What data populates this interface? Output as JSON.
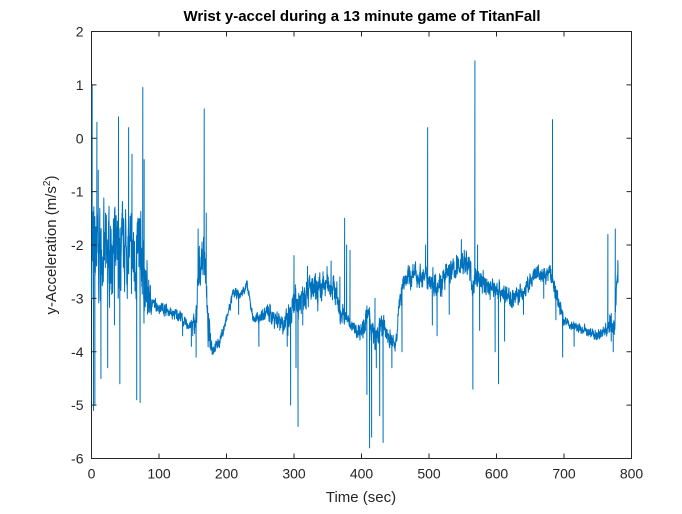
{
  "chart_data": {
    "type": "line",
    "title": "Wrist y-accel during a 13 minute game of TitanFall",
    "xlabel": "Time (sec)",
    "ylabel_main": "y-Acceleration (m/s",
    "ylabel_sup": "2",
    "ylabel_close": ")",
    "xlim": [
      0,
      800
    ],
    "ylim": [
      -6,
      2
    ],
    "xticks": [
      0,
      100,
      200,
      300,
      400,
      500,
      600,
      700,
      800
    ],
    "xtick_labels": [
      "0",
      "100",
      "200",
      "300",
      "400",
      "500",
      "600",
      "700",
      "800"
    ],
    "yticks": [
      -6,
      -5,
      -4,
      -3,
      -2,
      -1,
      0,
      1,
      2
    ],
    "ytick_labels": [
      "-6",
      "-5",
      "-4",
      "-3",
      "-2",
      "-1",
      "0",
      "1",
      "2"
    ],
    "grid": false,
    "series_color": "#0072bd",
    "baseline": [
      [
        0,
        -2.3
      ],
      [
        10,
        -2.1
      ],
      [
        20,
        -2.2
      ],
      [
        30,
        -2.1
      ],
      [
        40,
        -2.3
      ],
      [
        50,
        -2.0
      ],
      [
        60,
        -2.3
      ],
      [
        70,
        -2.1
      ],
      [
        75,
        -2.3
      ],
      [
        80,
        -2.9
      ],
      [
        85,
        -3.0
      ],
      [
        90,
        -3.1
      ],
      [
        100,
        -3.15
      ],
      [
        110,
        -3.2
      ],
      [
        120,
        -3.3
      ],
      [
        130,
        -3.3
      ],
      [
        140,
        -3.5
      ],
      [
        150,
        -3.5
      ],
      [
        155,
        -3.4
      ],
      [
        160,
        -2.4
      ],
      [
        168,
        -2.1
      ],
      [
        172,
        -3.5
      ],
      [
        180,
        -3.95
      ],
      [
        190,
        -3.8
      ],
      [
        200,
        -3.4
      ],
      [
        210,
        -2.9
      ],
      [
        220,
        -2.95
      ],
      [
        230,
        -2.75
      ],
      [
        240,
        -3.4
      ],
      [
        250,
        -3.35
      ],
      [
        260,
        -3.25
      ],
      [
        270,
        -3.35
      ],
      [
        280,
        -3.4
      ],
      [
        290,
        -3.5
      ],
      [
        300,
        -3.2
      ],
      [
        310,
        -3.0
      ],
      [
        320,
        -2.8
      ],
      [
        330,
        -2.9
      ],
      [
        340,
        -2.85
      ],
      [
        350,
        -2.7
      ],
      [
        360,
        -2.8
      ],
      [
        370,
        -3.3
      ],
      [
        380,
        -3.4
      ],
      [
        390,
        -3.6
      ],
      [
        400,
        -3.6
      ],
      [
        410,
        -3.3
      ],
      [
        420,
        -3.8
      ],
      [
        430,
        -3.5
      ],
      [
        440,
        -3.7
      ],
      [
        450,
        -3.9
      ],
      [
        460,
        -2.7
      ],
      [
        470,
        -2.6
      ],
      [
        480,
        -2.55
      ],
      [
        490,
        -2.6
      ],
      [
        500,
        -2.65
      ],
      [
        510,
        -2.7
      ],
      [
        520,
        -2.7
      ],
      [
        530,
        -2.5
      ],
      [
        540,
        -2.45
      ],
      [
        550,
        -2.3
      ],
      [
        560,
        -2.4
      ],
      [
        565,
        -2.8
      ],
      [
        570,
        -2.6
      ],
      [
        580,
        -2.7
      ],
      [
        590,
        -2.8
      ],
      [
        600,
        -2.8
      ],
      [
        610,
        -2.9
      ],
      [
        620,
        -3.0
      ],
      [
        630,
        -2.95
      ],
      [
        640,
        -2.9
      ],
      [
        650,
        -2.7
      ],
      [
        660,
        -2.55
      ],
      [
        670,
        -2.6
      ],
      [
        680,
        -2.5
      ],
      [
        690,
        -3.0
      ],
      [
        700,
        -3.4
      ],
      [
        710,
        -3.5
      ],
      [
        720,
        -3.55
      ],
      [
        730,
        -3.6
      ],
      [
        740,
        -3.65
      ],
      [
        750,
        -3.7
      ],
      [
        760,
        -3.6
      ],
      [
        770,
        -3.5
      ],
      [
        775,
        -3.5
      ],
      [
        780,
        -2.3
      ]
    ],
    "noise": [
      [
        0,
        1.2
      ],
      [
        80,
        1.0
      ],
      [
        90,
        0.15
      ],
      [
        150,
        0.15
      ],
      [
        160,
        0.7
      ],
      [
        175,
        0.4
      ],
      [
        180,
        0.15
      ],
      [
        240,
        0.12
      ],
      [
        280,
        0.3
      ],
      [
        300,
        0.45
      ],
      [
        370,
        0.35
      ],
      [
        380,
        0.15
      ],
      [
        420,
        0.35
      ],
      [
        450,
        0.2
      ],
      [
        460,
        0.3
      ],
      [
        560,
        0.35
      ],
      [
        570,
        0.3
      ],
      [
        600,
        0.25
      ],
      [
        690,
        0.25
      ],
      [
        700,
        0.12
      ],
      [
        760,
        0.15
      ],
      [
        770,
        0.35
      ],
      [
        780,
        0.35
      ]
    ],
    "spikes": [
      [
        1,
        1.0
      ],
      [
        3,
        -5.1
      ],
      [
        5,
        -5.0
      ],
      [
        8,
        0.3
      ],
      [
        10,
        -0.6
      ],
      [
        14,
        -4.5
      ],
      [
        18,
        -1.5
      ],
      [
        24,
        -4.3
      ],
      [
        30,
        -2.0
      ],
      [
        34,
        -3.5
      ],
      [
        40,
        0.4
      ],
      [
        42,
        -4.6
      ],
      [
        55,
        0.2
      ],
      [
        60,
        -0.3
      ],
      [
        67,
        -4.9
      ],
      [
        72,
        -4.95
      ],
      [
        76,
        0.95
      ],
      [
        78,
        -0.4
      ],
      [
        135,
        -3.7
      ],
      [
        148,
        -3.9
      ],
      [
        150,
        -3.7
      ],
      [
        155,
        -4.1
      ],
      [
        158,
        -1.7
      ],
      [
        167,
        0.55
      ],
      [
        170,
        -1.4
      ],
      [
        180,
        -4.05
      ],
      [
        218,
        -3.3
      ],
      [
        248,
        -3.9
      ],
      [
        290,
        -3.9
      ],
      [
        295,
        -5.0
      ],
      [
        300,
        -2.2
      ],
      [
        303,
        -4.3
      ],
      [
        306,
        -5.4
      ],
      [
        313,
        -3.5
      ],
      [
        320,
        -2.4
      ],
      [
        343,
        -2.5
      ],
      [
        355,
        -2.3
      ],
      [
        368,
        -2.6
      ],
      [
        375,
        -1.5
      ],
      [
        378,
        -2.0
      ],
      [
        383,
        -2.1
      ],
      [
        403,
        -3.4
      ],
      [
        408,
        -4.8
      ],
      [
        412,
        -5.8
      ],
      [
        415,
        -5.6
      ],
      [
        420,
        -3.0
      ],
      [
        422,
        -4.3
      ],
      [
        427,
        -5.2
      ],
      [
        432,
        -5.7
      ],
      [
        445,
        -4.3
      ],
      [
        460,
        -4.0
      ],
      [
        495,
        -2.0
      ],
      [
        498,
        0.2
      ],
      [
        505,
        -3.5
      ],
      [
        512,
        -3.7
      ],
      [
        530,
        -3.3
      ],
      [
        548,
        -1.9
      ],
      [
        565,
        -4.7
      ],
      [
        568,
        1.45
      ],
      [
        572,
        -2.0
      ],
      [
        575,
        -3.6
      ],
      [
        598,
        -4.0
      ],
      [
        603,
        -4.6
      ],
      [
        612,
        -3.8
      ],
      [
        640,
        -3.3
      ],
      [
        670,
        -3.0
      ],
      [
        683,
        0.35
      ],
      [
        688,
        -3.4
      ],
      [
        698,
        -4.1
      ],
      [
        715,
        -3.9
      ],
      [
        765,
        -1.8
      ],
      [
        770,
        -3.8
      ],
      [
        773,
        -4.0
      ],
      [
        776,
        -1.7
      ],
      [
        780,
        -2.7
      ]
    ]
  }
}
